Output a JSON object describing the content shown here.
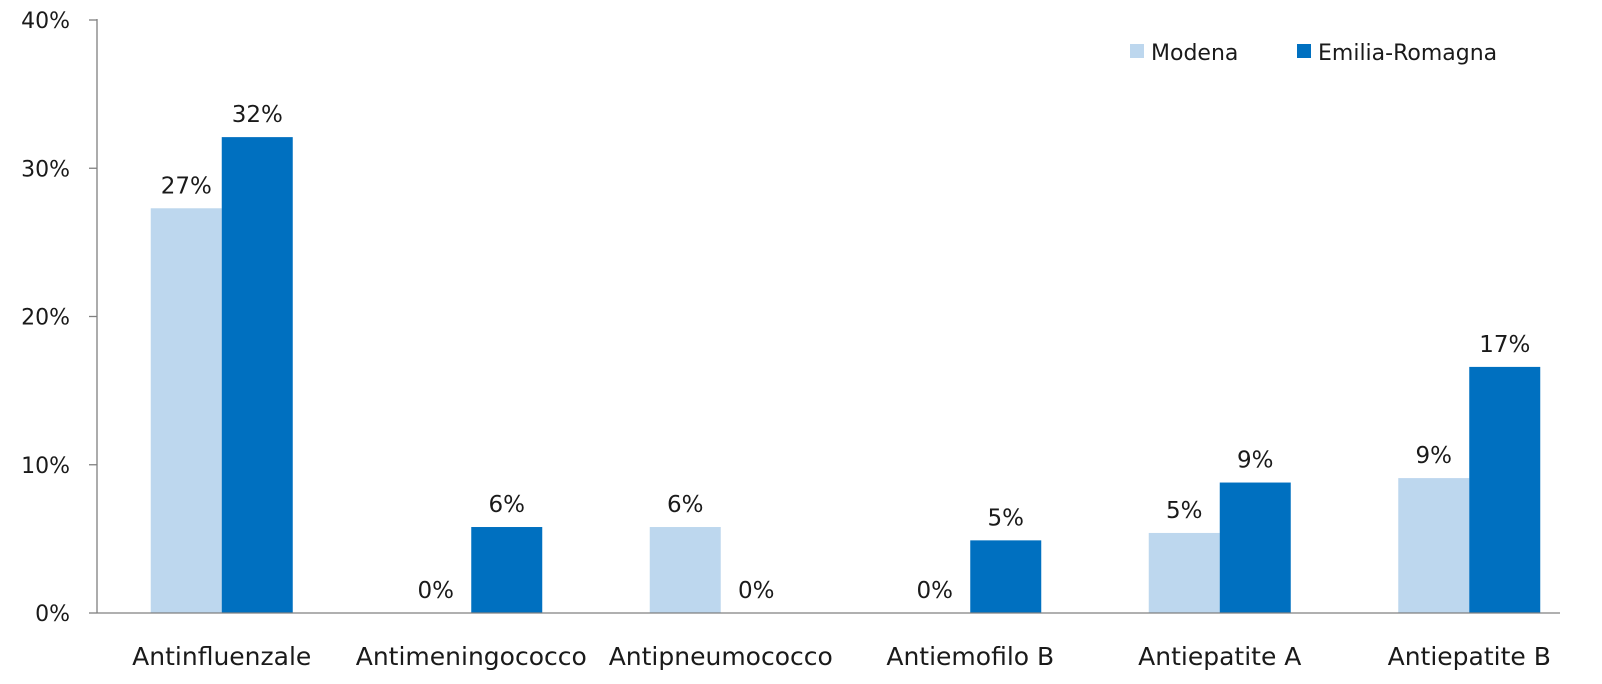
{
  "chart_data": {
    "type": "bar",
    "categories": [
      "Antinfluenzale",
      "Antimeningococco",
      "Antipneumococco",
      "Antiemofilo B",
      "Antiepatite A",
      "Antiepatite B"
    ],
    "series": [
      {
        "name": "Modena",
        "color": "#bdd7ee",
        "values": [
          27.3,
          0,
          5.8,
          0,
          5.4,
          9.1
        ],
        "labels": [
          "27%",
          "0%",
          "6%",
          "0%",
          "5%",
          "9%"
        ]
      },
      {
        "name": "Emilia-Romagna",
        "color": "#0070c0",
        "values": [
          32.1,
          5.8,
          0,
          4.9,
          8.8,
          16.6
        ],
        "labels": [
          "32%",
          "6%",
          "0%",
          "5%",
          "9%",
          "17%"
        ]
      }
    ],
    "y_ticks": [
      {
        "value": 0,
        "label": "0%"
      },
      {
        "value": 10,
        "label": "10%"
      },
      {
        "value": 20,
        "label": "20%"
      },
      {
        "value": 30,
        "label": "30%"
      },
      {
        "value": 40,
        "label": "40%"
      }
    ],
    "ylim": [
      0,
      40
    ],
    "grid": false,
    "legend_position": "top-right",
    "axis_color": "#808080"
  }
}
